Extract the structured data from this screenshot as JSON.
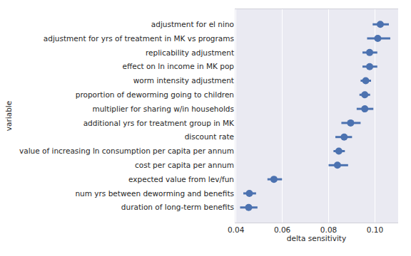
{
  "chart_data": {
    "type": "point",
    "orientation": "horizontal",
    "x_label": "delta sensitivity",
    "y_label": "variable",
    "categories": [
      "adjustment for el nino",
      "adjustment for yrs of treatment in MK vs programs",
      "replicability adjustment",
      "effect on ln income in MK pop",
      "worm intensity adjustment",
      "proportion of deworming going to children",
      "multiplier for sharing w/in households",
      "additional yrs for treatment group in MK",
      "discount rate",
      "value of increasing ln consumption per capita per annum",
      "cost per capita per annum",
      "expected value from lev/fun",
      "num yrs between deworming and benefits",
      "duration of long-term benefits"
    ],
    "values": [
      0.1023,
      0.1012,
      0.0977,
      0.0977,
      0.096,
      0.0956,
      0.0956,
      0.0895,
      0.0867,
      0.0844,
      0.0838,
      0.0564,
      0.0458,
      0.0455
    ],
    "ci_low": [
      0.099,
      0.0966,
      0.0946,
      0.0946,
      0.0938,
      0.0933,
      0.0921,
      0.0855,
      0.0829,
      0.0821,
      0.08,
      0.0536,
      0.0432,
      0.0418
    ],
    "ci_high": [
      0.106,
      0.1066,
      0.101,
      0.101,
      0.0983,
      0.0979,
      0.0993,
      0.0938,
      0.0901,
      0.087,
      0.0884,
      0.0599,
      0.0487,
      0.0493
    ],
    "color": "#4c72b0",
    "marker": "circle",
    "xlim": [
      0.0395,
      0.11
    ],
    "xticks": [
      0.04,
      0.06,
      0.08,
      {
        "value": 0.1,
        "label": "0.10"
      }
    ],
    "grid": true
  }
}
